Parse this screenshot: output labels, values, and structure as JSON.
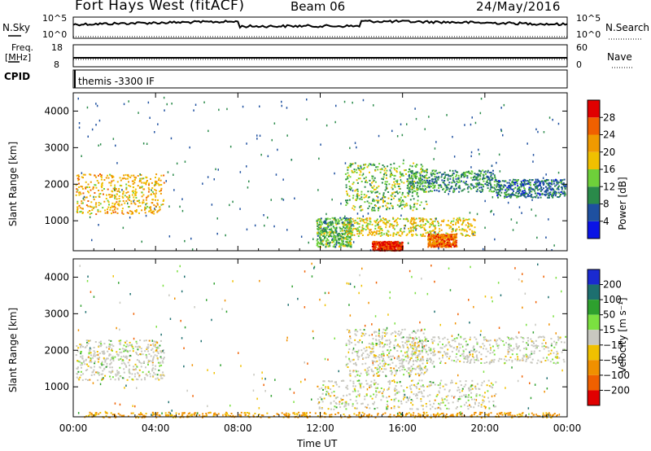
{
  "header": {
    "station": "Fort Hays West (fitACF)",
    "beam": "Beam 06",
    "date": "24/May/2016"
  },
  "top_panels": {
    "nsky_label": "N.Sky",
    "nsky_ticks": [
      "10^5",
      "10^0"
    ],
    "nsearch_label": "N.Search",
    "freq_label_line1": "Freq.",
    "freq_label_line2": "[MHz]",
    "freq_ticks": [
      "18",
      "8"
    ],
    "nave_label": "Nave",
    "nave_ticks": [
      "60",
      "0"
    ],
    "cpid_label": "CPID",
    "cpid_text": "themis -3300 IF"
  },
  "colors": {
    "power_scale": [
      "#0a14e6",
      "#1e50a0",
      "#2a8a4a",
      "#6ed03a",
      "#f0c000",
      "#f09a00",
      "#f06000",
      "#e00000"
    ],
    "velocity_scale": [
      "#1a2ad0",
      "#1d6f6f",
      "#2ea02e",
      "#7be040",
      "#c8c8c0",
      "#f0c000",
      "#f09000",
      "#f06000",
      "#e00000"
    ],
    "ground_scatter": "#c8c8c0"
  },
  "chart_data": [
    {
      "type": "heatmap",
      "title": "",
      "xlabel": "",
      "ylabel": "Slant Range [km]",
      "x_ticks": [
        "00:00",
        "04:00",
        "08:00",
        "12:00",
        "16:00",
        "20:00",
        "00:00"
      ],
      "xlim_hours": [
        0,
        24
      ],
      "y_ticks": [
        1000,
        2000,
        3000,
        4000
      ],
      "ylim": [
        180,
        4500
      ],
      "colorbar": {
        "label": "Power [dB]",
        "ticks": [
          4,
          8,
          12,
          16,
          20,
          24,
          28
        ],
        "range": [
          0,
          30
        ]
      },
      "patches": [
        {
          "t": [
            0.1,
            4.4
          ],
          "r": [
            1200,
            2300
          ],
          "level": 20
        },
        {
          "t": [
            11.8,
            13.5
          ],
          "r": [
            300,
            1100
          ],
          "level": 12
        },
        {
          "t": [
            13.2,
            19.5
          ],
          "r": [
            600,
            1100
          ],
          "level": 18
        },
        {
          "t": [
            14.5,
            16.0
          ],
          "r": [
            200,
            450
          ],
          "level": 29
        },
        {
          "t": [
            17.2,
            18.6
          ],
          "r": [
            300,
            650
          ],
          "level": 25
        },
        {
          "t": [
            16.2,
            20.5
          ],
          "r": [
            1800,
            2400
          ],
          "level": 10
        },
        {
          "t": [
            20.5,
            23.9
          ],
          "r": [
            1650,
            2150
          ],
          "level": 8
        },
        {
          "t": [
            13.2,
            17.2
          ],
          "r": [
            1300,
            2600
          ],
          "level": 14
        }
      ]
    },
    {
      "type": "heatmap",
      "title": "",
      "xlabel": "Time UT",
      "ylabel": "Slant Range [km]",
      "x_ticks": [
        "00:00",
        "04:00",
        "08:00",
        "12:00",
        "16:00",
        "20:00",
        "00:00"
      ],
      "xlim_hours": [
        0,
        24
      ],
      "y_ticks": [
        1000,
        2000,
        3000,
        4000
      ],
      "ylim": [
        180,
        4500
      ],
      "colorbar": {
        "label": "Velocity [m s⁻¹]",
        "ticks": [
          200,
          100,
          50,
          15,
          -15,
          -50,
          -100,
          -200
        ],
        "range": [
          -250,
          250
        ]
      },
      "patches": [
        {
          "t": [
            0.1,
            4.4
          ],
          "r": [
            1200,
            2300
          ],
          "level": 0
        },
        {
          "t": [
            11.8,
            20.5
          ],
          "r": [
            400,
            1200
          ],
          "level": 0
        },
        {
          "t": [
            13.2,
            17.2
          ],
          "r": [
            1300,
            2600
          ],
          "level": 0
        },
        {
          "t": [
            16.2,
            23.9
          ],
          "r": [
            1650,
            2400
          ],
          "level": 0
        },
        {
          "t": [
            0.5,
            23.5
          ],
          "r": [
            180,
            320
          ],
          "level": -60
        }
      ]
    }
  ],
  "timeseries": {
    "nsky_note": "values near top of 10^0-10^5 scale with a dip around 08:00-14:00",
    "freq_mhz": 10.5,
    "nave": 30
  }
}
